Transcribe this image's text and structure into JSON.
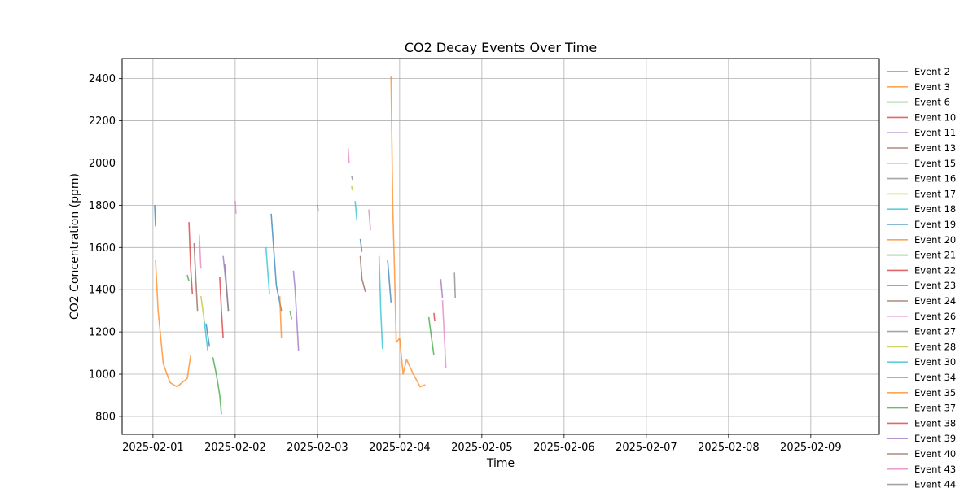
{
  "chart_data": {
    "type": "line",
    "title": "CO2 Decay Events Over Time",
    "xlabel": "Time",
    "ylabel": "CO2 Concentration (ppm)",
    "x_type": "date",
    "xlim": [
      "2025-01-31T15:00",
      "2025-02-09T20:00"
    ],
    "ylim": [
      715,
      2495
    ],
    "x_ticks": [
      "2025-02-01",
      "2025-02-02",
      "2025-02-03",
      "2025-02-04",
      "2025-02-05",
      "2025-02-06",
      "2025-02-07",
      "2025-02-08",
      "2025-02-09"
    ],
    "y_ticks": [
      800,
      1000,
      1200,
      1400,
      1600,
      1800,
      2000,
      2200,
      2400
    ],
    "grid": true,
    "legend_position": "right-outside",
    "series": [
      {
        "name": "Event 2",
        "color": "#1f77b4",
        "segments": [
          [
            [
              "2025-02-01T00:30",
              1800
            ],
            [
              "2025-02-01T00:45",
              1700
            ]
          ],
          [
            [
              "2025-02-02T10:30",
              1760
            ],
            [
              "2025-02-02T12:00",
              1420
            ],
            [
              "2025-02-02T13:30",
              1300
            ]
          ],
          [
            [
              "2025-02-03T12:30",
              1640
            ],
            [
              "2025-02-03T13:00",
              1580
            ]
          ]
        ]
      },
      {
        "name": "Event 3",
        "color": "#ff7f0e",
        "segments": [
          [
            [
              "2025-02-01T00:45",
              1540
            ],
            [
              "2025-02-01T01:30",
              1300
            ],
            [
              "2025-02-01T03:00",
              1050
            ],
            [
              "2025-02-01T05:00",
              960
            ],
            [
              "2025-02-01T07:00",
              940
            ],
            [
              "2025-02-01T08:30",
              960
            ],
            [
              "2025-02-01T10:00",
              980
            ],
            [
              "2025-02-01T11:00",
              1090
            ]
          ]
        ]
      },
      {
        "name": "Event 6",
        "color": "#2ca02c",
        "segments": [
          [
            [
              "2025-02-01T17:30",
              1080
            ],
            [
              "2025-02-01T18:30",
              1000
            ],
            [
              "2025-02-01T19:30",
              900
            ],
            [
              "2025-02-01T20:00",
              810
            ]
          ],
          [
            [
              "2025-02-01T10:00",
              1470
            ],
            [
              "2025-02-01T10:30",
              1440
            ]
          ]
        ]
      },
      {
        "name": "Event 10",
        "color": "#d62728",
        "segments": [
          [
            [
              "2025-02-01T10:30",
              1720
            ],
            [
              "2025-02-01T11:00",
              1500
            ],
            [
              "2025-02-01T11:30",
              1380
            ]
          ]
        ]
      },
      {
        "name": "Event 11",
        "color": "#9467bd",
        "segments": [
          [
            [
              "2025-02-01T20:30",
              1560
            ],
            [
              "2025-02-01T21:30",
              1400
            ],
            [
              "2025-02-01T22:00",
              1300
            ]
          ]
        ]
      },
      {
        "name": "Event 13",
        "color": "#8c564b",
        "segments": [
          [
            [
              "2025-02-01T12:00",
              1620
            ],
            [
              "2025-02-01T12:30",
              1450
            ],
            [
              "2025-02-01T13:00",
              1300
            ]
          ]
        ]
      },
      {
        "name": "Event 15",
        "color": "#e377c2",
        "segments": [
          [
            [
              "2025-02-02T00:00",
              1820
            ],
            [
              "2025-02-02T00:15",
              1760
            ]
          ],
          [
            [
              "2025-02-01T13:30",
              1660
            ],
            [
              "2025-02-01T14:00",
              1500
            ]
          ]
        ]
      },
      {
        "name": "Event 16",
        "color": "#7f7f7f",
        "segments": [
          [
            [
              "2025-02-01T21:00",
              1520
            ],
            [
              "2025-02-01T22:00",
              1300
            ]
          ]
        ]
      },
      {
        "name": "Event 17",
        "color": "#bcbd22",
        "segments": [
          [
            [
              "2025-02-01T14:00",
              1370
            ],
            [
              "2025-02-01T15:00",
              1250
            ]
          ]
        ]
      },
      {
        "name": "Event 18",
        "color": "#17becf",
        "segments": [
          [
            [
              "2025-02-02T09:00",
              1600
            ],
            [
              "2025-02-02T10:00",
              1380
            ]
          ],
          [
            [
              "2025-02-01T15:00",
              1250
            ],
            [
              "2025-02-01T16:00",
              1110
            ]
          ]
        ]
      },
      {
        "name": "Event 19",
        "color": "#1f77b4",
        "segments": [
          [
            [
              "2025-02-01T15:30",
              1240
            ],
            [
              "2025-02-01T16:30",
              1130
            ]
          ]
        ]
      },
      {
        "name": "Event 20",
        "color": "#ff7f0e",
        "segments": [
          [
            [
              "2025-02-02T13:00",
              1370
            ],
            [
              "2025-02-02T13:30",
              1170
            ]
          ]
        ]
      },
      {
        "name": "Event 21",
        "color": "#2ca02c",
        "segments": [
          [
            [
              "2025-02-02T16:00",
              1300
            ],
            [
              "2025-02-02T16:30",
              1260
            ]
          ]
        ]
      },
      {
        "name": "Event 22",
        "color": "#d62728",
        "segments": [
          [
            [
              "2025-02-01T19:30",
              1460
            ],
            [
              "2025-02-01T20:00",
              1300
            ],
            [
              "2025-02-01T20:30",
              1170
            ]
          ]
        ]
      },
      {
        "name": "Event 23",
        "color": "#9467bd",
        "segments": [
          [
            [
              "2025-02-02T17:00",
              1490
            ],
            [
              "2025-02-02T17:30",
              1400
            ],
            [
              "2025-02-02T18:30",
              1110
            ]
          ]
        ]
      },
      {
        "name": "Event 24",
        "color": "#8c564b",
        "segments": [
          [
            [
              "2025-02-03T00:00",
              1800
            ],
            [
              "2025-02-03T00:15",
              1770
            ]
          ]
        ]
      },
      {
        "name": "Event 26",
        "color": "#e377c2",
        "segments": [
          [
            [
              "2025-02-03T09:00",
              2070
            ],
            [
              "2025-02-03T09:15",
              2000
            ]
          ]
        ]
      },
      {
        "name": "Event 27",
        "color": "#7f7f7f",
        "segments": [
          [
            [
              "2025-02-03T10:00",
              1940
            ],
            [
              "2025-02-03T10:15",
              1920
            ]
          ]
        ]
      },
      {
        "name": "Event 28",
        "color": "#bcbd22",
        "segments": [
          [
            [
              "2025-02-03T10:00",
              1890
            ],
            [
              "2025-02-03T10:15",
              1870
            ]
          ]
        ]
      },
      {
        "name": "Event 30",
        "color": "#17becf",
        "segments": [
          [
            [
              "2025-02-03T11:00",
              1820
            ],
            [
              "2025-02-03T11:30",
              1730
            ]
          ],
          [
            [
              "2025-02-03T18:00",
              1560
            ],
            [
              "2025-02-03T18:30",
              1300
            ],
            [
              "2025-02-03T19:00",
              1120
            ]
          ]
        ]
      },
      {
        "name": "Event 34",
        "color": "#1f77b4",
        "segments": [
          [
            [
              "2025-02-03T20:30",
              1540
            ],
            [
              "2025-02-03T21:00",
              1440
            ],
            [
              "2025-02-03T21:30",
              1340
            ]
          ]
        ]
      },
      {
        "name": "Event 35",
        "color": "#ff7f0e",
        "segments": [
          [
            [
              "2025-02-03T21:30",
              2410
            ],
            [
              "2025-02-03T22:00",
              1800
            ],
            [
              "2025-02-03T22:30",
              1500
            ],
            [
              "2025-02-03T23:00",
              1150
            ],
            [
              "2025-02-04T00:00",
              1170
            ],
            [
              "2025-02-04T01:00",
              1000
            ],
            [
              "2025-02-04T02:00",
              1070
            ],
            [
              "2025-02-04T04:00",
              1000
            ],
            [
              "2025-02-04T06:00",
              940
            ],
            [
              "2025-02-04T07:30",
              950
            ]
          ]
        ]
      },
      {
        "name": "Event 37",
        "color": "#2ca02c",
        "segments": [
          [
            [
              "2025-02-04T08:30",
              1270
            ],
            [
              "2025-02-04T09:30",
              1150
            ],
            [
              "2025-02-04T10:00",
              1090
            ]
          ]
        ]
      },
      {
        "name": "Event 38",
        "color": "#d62728",
        "segments": [
          [
            [
              "2025-02-04T10:00",
              1290
            ],
            [
              "2025-02-04T10:15",
              1250
            ]
          ]
        ]
      },
      {
        "name": "Event 39",
        "color": "#9467bd",
        "segments": [
          [
            [
              "2025-02-04T12:00",
              1450
            ],
            [
              "2025-02-04T12:30",
              1360
            ]
          ]
        ]
      },
      {
        "name": "Event 40",
        "color": "#8c564b",
        "segments": [
          [
            [
              "2025-02-03T12:30",
              1560
            ],
            [
              "2025-02-03T13:00",
              1450
            ],
            [
              "2025-02-03T14:00",
              1390
            ]
          ]
        ]
      },
      {
        "name": "Event 43",
        "color": "#e377c2",
        "segments": [
          [
            [
              "2025-02-03T15:00",
              1780
            ],
            [
              "2025-02-03T15:30",
              1680
            ]
          ],
          [
            [
              "2025-02-04T12:30",
              1350
            ],
            [
              "2025-02-04T13:30",
              1030
            ]
          ]
        ]
      },
      {
        "name": "Event 44",
        "color": "#7f7f7f",
        "segments": [
          [
            [
              "2025-02-04T16:00",
              1480
            ],
            [
              "2025-02-04T16:15",
              1360
            ]
          ]
        ]
      }
    ]
  }
}
